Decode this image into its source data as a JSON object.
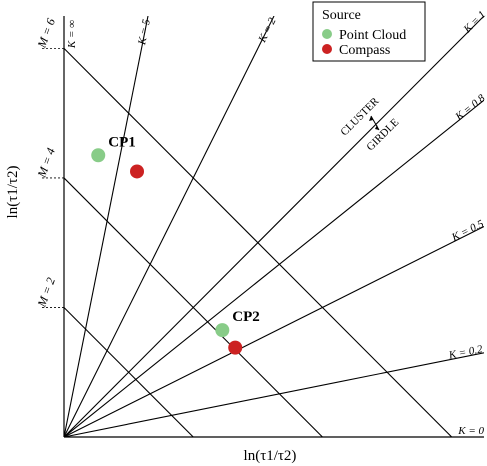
{
  "chart_data": {
    "type": "scatter",
    "xlabel": "ln(τ1/τ2)",
    "ylabel": "ln(τ1/τ2)",
    "legend": {
      "title": "Source",
      "placement": "top-right",
      "entries": [
        {
          "name": "Point Cloud",
          "color": "#88cc88"
        },
        {
          "name": "Compass",
          "color": "#cc2222"
        }
      ]
    },
    "k_lines": [
      {
        "label": "K = ∞",
        "k": "inf"
      },
      {
        "label": "K = 5",
        "k": 5
      },
      {
        "label": "K = 2",
        "k": 2
      },
      {
        "label": "K = 1",
        "k": 1
      },
      {
        "label": "K = 0.8",
        "k": 0.8
      },
      {
        "label": "K = 0.5",
        "k": 0.5
      },
      {
        "label": "K = 0.2",
        "k": 0.2
      },
      {
        "label": "K = 0",
        "k": 0
      }
    ],
    "m_lines": [
      {
        "label": "M = 6",
        "m": 6
      },
      {
        "label": "M = 4",
        "m": 4
      },
      {
        "label": "M = 2",
        "m": 2
      }
    ],
    "region_labels": {
      "upper": "CLUSTER",
      "lower": "GIRDLE"
    },
    "points": [
      {
        "label": "CP1",
        "series": "Point Cloud",
        "x": 0.53,
        "y": 4.35
      },
      {
        "label": "CP1",
        "series": "Compass",
        "x": 1.13,
        "y": 4.1
      },
      {
        "label": "CP2",
        "series": "Point Cloud",
        "x": 2.45,
        "y": 1.65
      },
      {
        "label": "CP2",
        "series": "Compass",
        "x": 2.65,
        "y": 1.38
      }
    ],
    "xlim": [
      0,
      6.5
    ],
    "ylim": [
      0,
      6.5
    ],
    "grid": false
  }
}
